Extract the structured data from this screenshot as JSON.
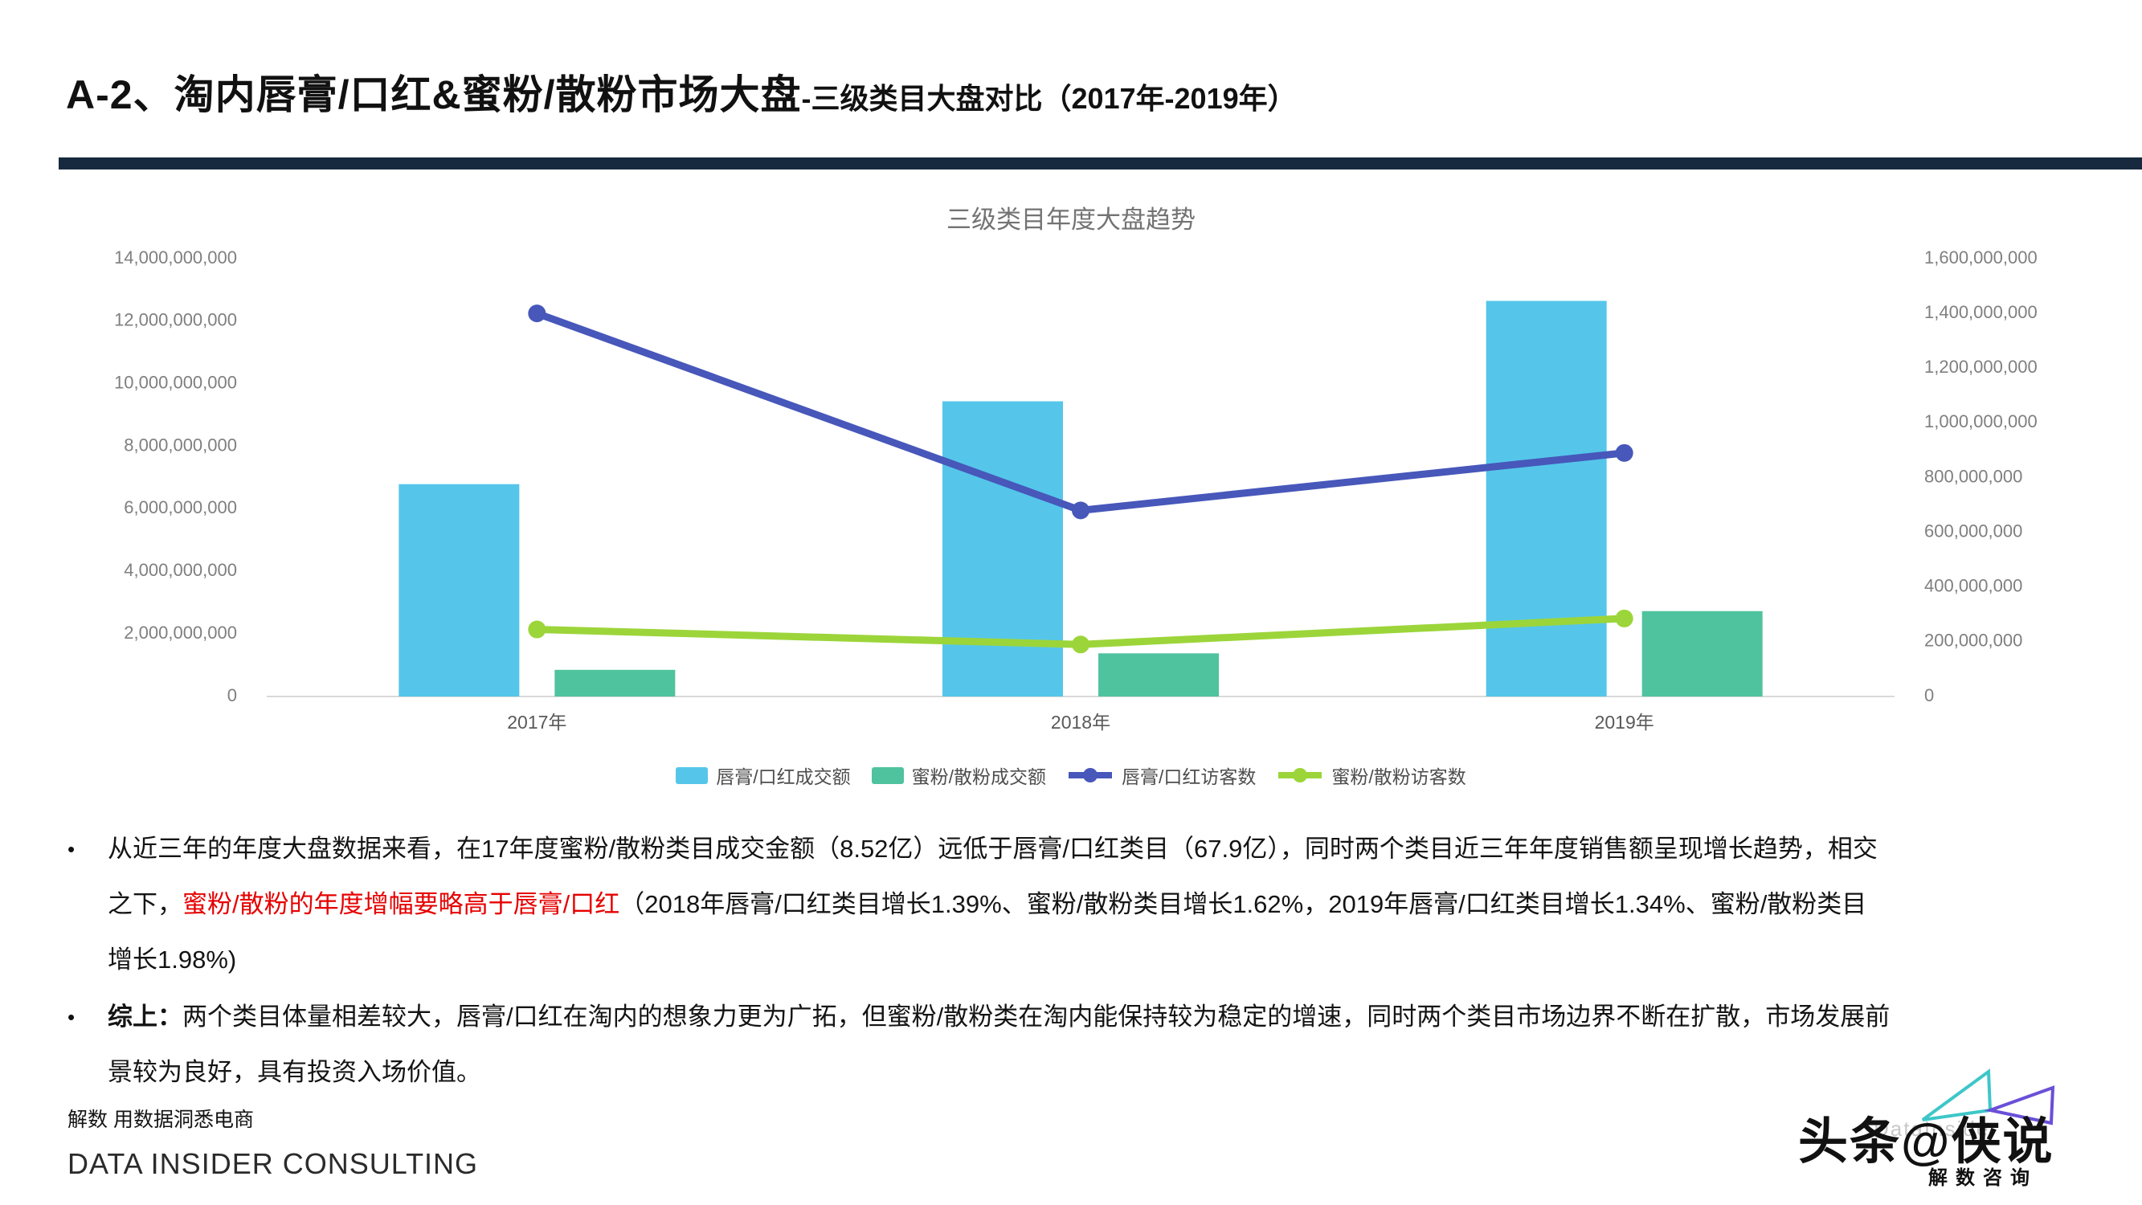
{
  "header": {
    "title_main": "A-2、淘内唇膏/口红&蜜粉/散粉市场大盘",
    "title_sub": "-三级类目大盘对比（2017年-2019年）"
  },
  "chart_data": {
    "type": "bar+line (dual y-axis)",
    "title": "三级类目年度大盘趋势",
    "categories": [
      "2017年",
      "2018年",
      "2019年"
    ],
    "series": [
      {
        "name": "唇膏/口红成交额",
        "type": "bar",
        "axis": "left",
        "color": "#55c6ea",
        "values": [
          6790000000,
          9440000000,
          12650000000
        ]
      },
      {
        "name": "蜜粉/散粉成交额",
        "type": "bar",
        "axis": "left",
        "color": "#4fc39e",
        "values": [
          852000000,
          1380000000,
          2730000000
        ]
      },
      {
        "name": "唇膏/口红访客数",
        "type": "line",
        "axis": "right",
        "color": "#4757ba",
        "values": [
          1400000000,
          680000000,
          890000000
        ]
      },
      {
        "name": "蜜粉/散粉访客数",
        "type": "line",
        "axis": "right",
        "color": "#9cd53a",
        "values": [
          245000000,
          190000000,
          285000000
        ]
      }
    ],
    "left_axis": {
      "min": 0,
      "max": 14000000000,
      "step": 2000000000,
      "tick_labels": [
        "0",
        "2,000,000,000",
        "4,000,000,000",
        "6,000,000,000",
        "8,000,000,000",
        "10,000,000,000",
        "12,000,000,000",
        "14,000,000,000"
      ]
    },
    "right_axis": {
      "min": 0,
      "max": 1600000000,
      "step": 200000000,
      "tick_labels": [
        "0",
        "200,000,000",
        "400,000,000",
        "600,000,000",
        "800,000,000",
        "1,000,000,000",
        "1,200,000,000",
        "1,400,000,000",
        "1,600,000,000"
      ]
    },
    "grid": false,
    "legend_position": "bottom"
  },
  "bullets": [
    {
      "marker": "•",
      "lines": [
        [
          {
            "t": "从近三年的年度大盘数据来看，在17年度蜜粉/散粉类目成交金额（8.52亿）远低于唇膏/口红类目（67.9亿），同时两个类目近三年年度销售额呈现增长趋势，相交",
            "s": "n"
          }
        ],
        [
          {
            "t": "之下，",
            "s": "n"
          },
          {
            "t": "蜜粉/散粉的年度增幅要略高于唇膏/口红",
            "s": "red"
          },
          {
            "t": "（2018年唇膏/口红类目增长1.39%、蜜粉/散粉类目增长1.62%，2019年唇膏/口红类目增长1.34%、蜜粉/散粉类目",
            "s": "n"
          }
        ],
        [
          {
            "t": "增长1.98%)",
            "s": "n"
          }
        ]
      ]
    },
    {
      "marker": "•",
      "lines": [
        [
          {
            "t": "综上：",
            "s": "bold"
          },
          {
            "t": "两个类目体量相差较大，唇膏/口红在淘内的想象力更为广拓，但蜜粉/散粉类在淘内能保持较为稳定的增速，同时两个类目市场边界不断在扩散，市场发展前",
            "s": "n"
          }
        ],
        [
          {
            "t": "景较为良好，具有投资入场价值。",
            "s": "n"
          }
        ]
      ]
    }
  ],
  "footer": {
    "tagline": "解数 用数据洞悉电商",
    "company": "DATA INSIDER CONSULTING"
  },
  "watermark": {
    "text": "头条@侠说",
    "ghost": "DataInsider",
    "caption": "解数咨询",
    "bowtie_left_color": "#3ec6c9",
    "bowtie_right_color": "#6a4fd8"
  }
}
